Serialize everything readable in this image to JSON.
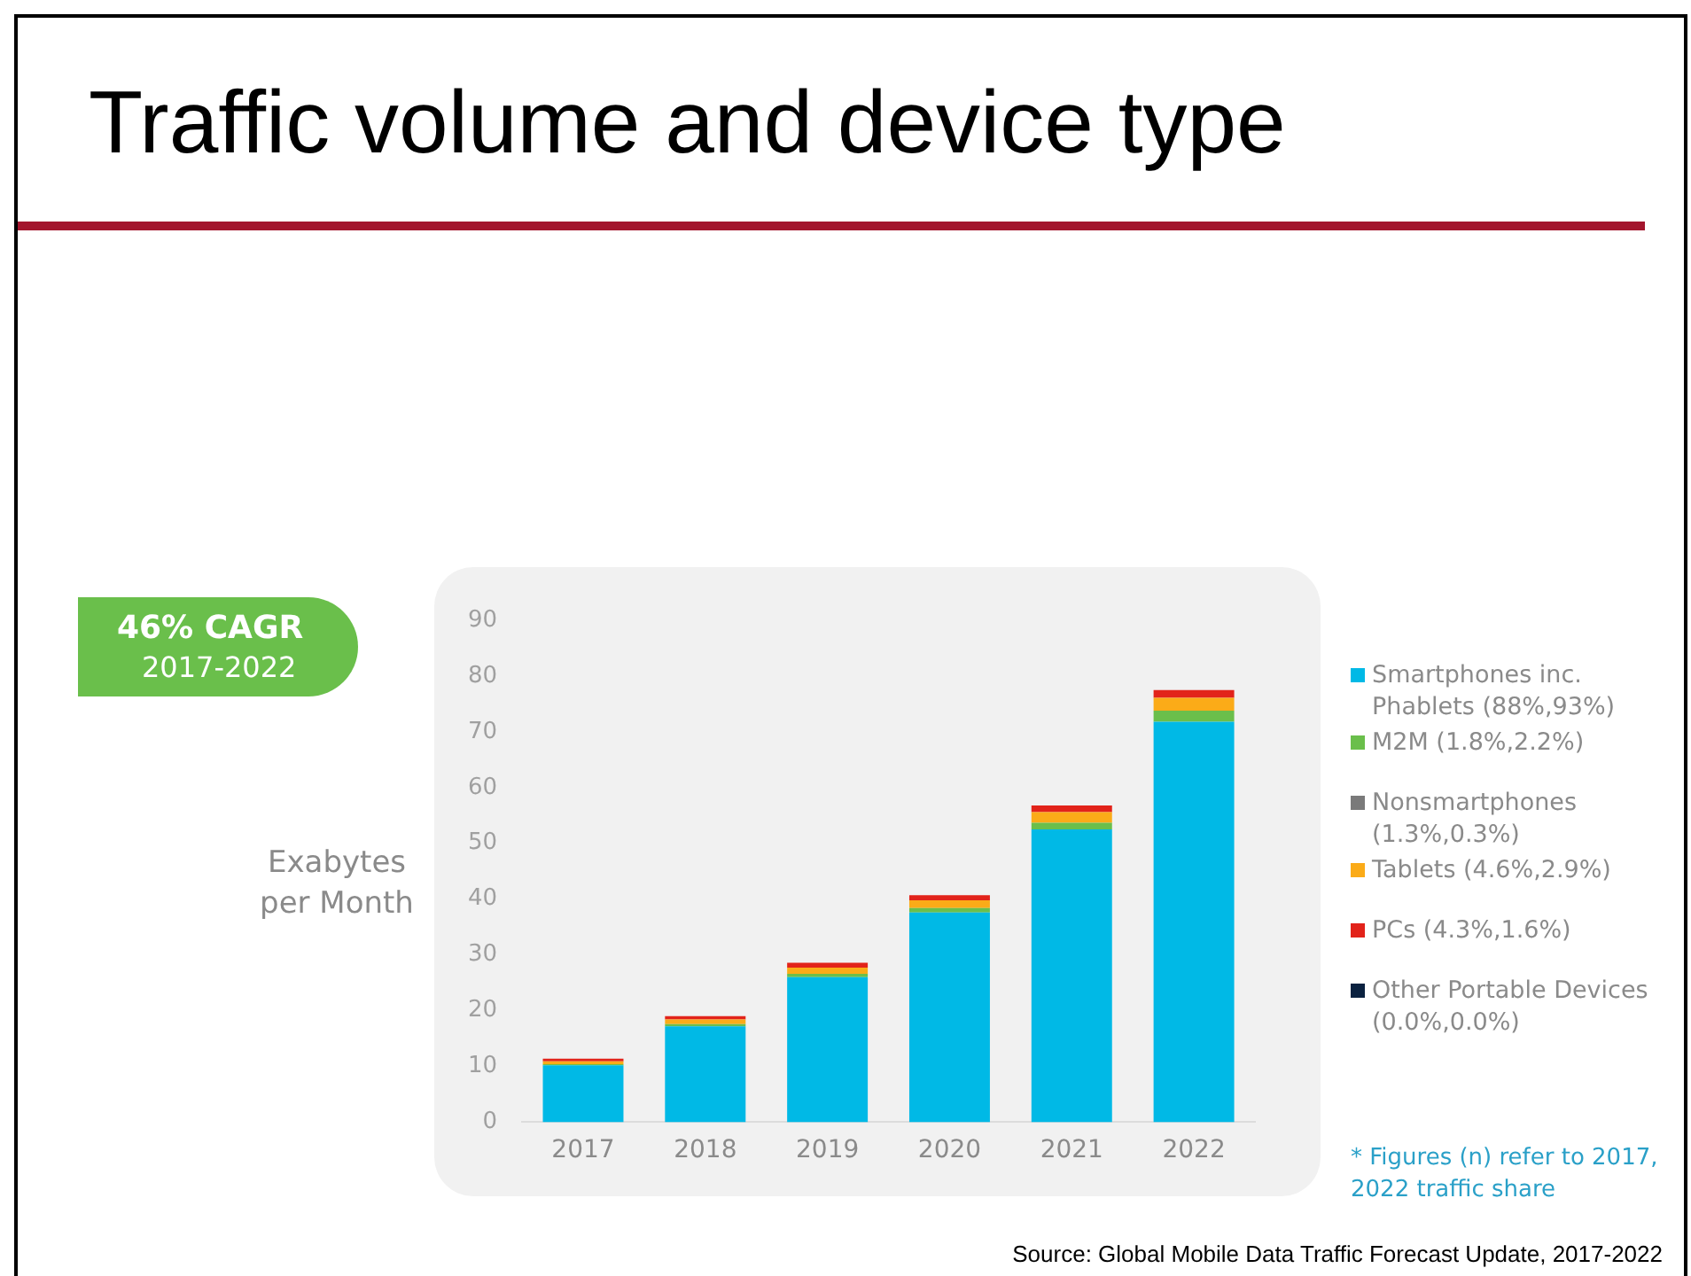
{
  "chart_data": {
    "type": "bar",
    "title": "Traffic volume and device type",
    "ylabel": "Exabytes per Month",
    "categories": [
      "2017",
      "2018",
      "2019",
      "2020",
      "2021",
      "2022"
    ],
    "stacked": true,
    "ylim": [
      0,
      90
    ],
    "yticks": [
      0,
      10,
      20,
      30,
      40,
      50,
      60,
      70,
      80,
      90
    ],
    "grid": false,
    "legend": "right",
    "series": [
      {
        "name": "Smartphones inc. Phablets (88%,93%)",
        "color": "#00b9e6",
        "values": [
          10.2,
          17.2,
          26.0,
          37.6,
          52.5,
          71.8
        ]
      },
      {
        "name": "M2M (1.8%,2.2%)",
        "color": "#6abf4b",
        "values": [
          0.2,
          0.4,
          0.6,
          0.8,
          1.2,
          2.0
        ]
      },
      {
        "name": "Nonsmartphones (1.3%,0.3%)",
        "color": "#7a7a7a",
        "values": [
          null,
          null,
          null,
          null,
          null,
          null
        ]
      },
      {
        "name": "Tablets (4.6%,2.9%)",
        "color": "#fbab18",
        "values": [
          0.5,
          0.8,
          1.1,
          1.4,
          1.9,
          2.3
        ]
      },
      {
        "name": "PCs (4.3%,1.6%)",
        "color": "#e2231a",
        "values": [
          0.5,
          0.6,
          0.9,
          0.9,
          1.2,
          1.4
        ]
      },
      {
        "name": "Other Portable Devices (0.0%,0.0%)",
        "color": "#0b2240",
        "values": [
          0,
          0,
          0,
          0,
          0,
          0
        ]
      }
    ],
    "annotations": [
      "46% CAGR",
      "2017-2022",
      "* Figures (n) refer to 2017, 2022 traffic share",
      "Source: Global Mobile Data Traffic Forecast Update, 2017-2022"
    ]
  }
}
